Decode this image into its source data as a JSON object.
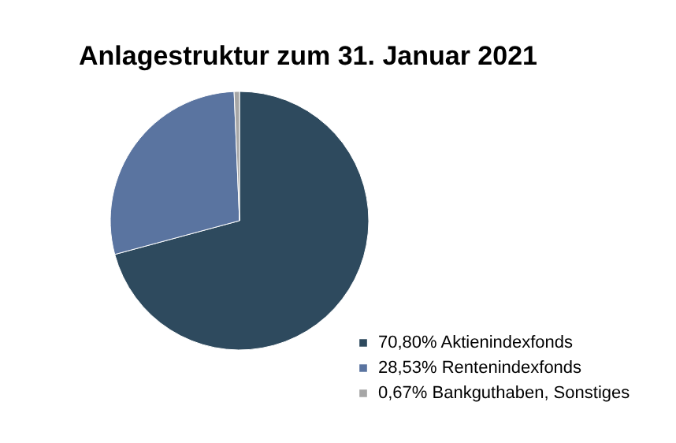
{
  "chart_data": {
    "type": "pie",
    "title": "Anlagestruktur zum 31. Januar 2021",
    "categories": [
      "Aktienindexfonds",
      "Rentenindexfonds",
      "Bankguthaben, Sonstiges"
    ],
    "values": [
      70.8,
      28.53,
      0.67
    ],
    "value_labels": [
      "70,80%",
      "28,53%",
      "0,67%"
    ],
    "colors": [
      "#2e4a5e",
      "#5a74a0",
      "#a6a6a6"
    ],
    "legend": "bottom right"
  }
}
